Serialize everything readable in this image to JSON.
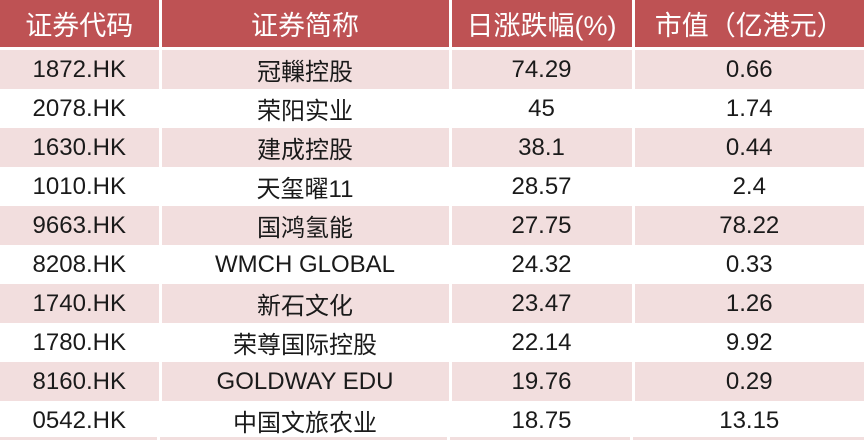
{
  "colors": {
    "header_bg": "#be5254",
    "header_text": "#ffffff",
    "stripe_bg": "#f2dede",
    "row_bg": "#ffffff",
    "cell_text": "#1a1a1a",
    "separator": "#ffffff"
  },
  "chart_data": {
    "type": "table",
    "columns": [
      "证券代码",
      "证券简称",
      "日涨跌幅(%)",
      "市值（亿港元）"
    ],
    "rows": [
      [
        "1872.HK",
        "冠轈控股",
        "74.29",
        "0.66"
      ],
      [
        "2078.HK",
        "荣阳实业",
        "45",
        "1.74"
      ],
      [
        "1630.HK",
        "建成控股",
        "38.1",
        "0.44"
      ],
      [
        "1010.HK",
        "天玺曜11",
        "28.57",
        "2.4"
      ],
      [
        "9663.HK",
        "国鸿氢能",
        "27.75",
        "78.22"
      ],
      [
        "8208.HK",
        "WMCH GLOBAL",
        "24.32",
        "0.33"
      ],
      [
        "1740.HK",
        "新石文化",
        "23.47",
        "1.26"
      ],
      [
        "1780.HK",
        "荣尊国际控股",
        "22.14",
        "9.92"
      ],
      [
        "8160.HK",
        "GOLDWAY EDU",
        "19.76",
        "0.29"
      ],
      [
        "0542.HK",
        "中国文旅农业",
        "18.75",
        "13.15"
      ]
    ],
    "layout": {
      "striped_rows": "odd rows pink, even rows white",
      "header_style": "red background, white centered text",
      "alignment": "all columns centered"
    }
  }
}
